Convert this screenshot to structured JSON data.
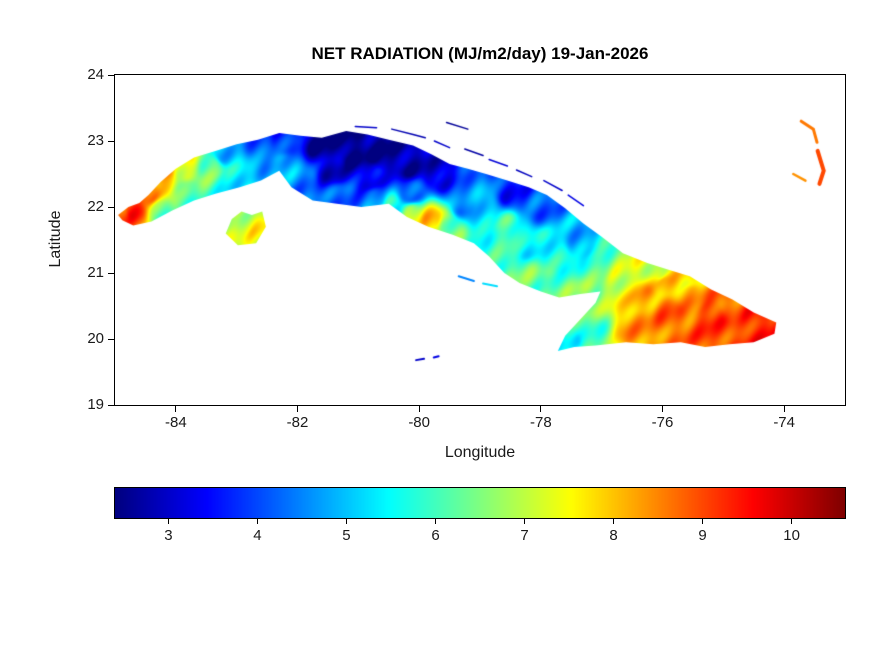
{
  "chart_data": {
    "type": "heatmap",
    "title": "NET RADIATION (MJ/m2/day) 19-Jan-2026",
    "xlabel": "Longitude",
    "ylabel": "Latitude",
    "units": "MJ/m2/day",
    "xlim": [
      -85,
      -73
    ],
    "ylim": [
      19,
      24
    ],
    "xticks": [
      -84,
      -82,
      -80,
      -78,
      -76,
      -74
    ],
    "yticks": [
      19,
      20,
      21,
      22,
      23,
      24
    ],
    "grid": false,
    "legend": "none",
    "colorbar": {
      "orientation": "horizontal",
      "colormap": "jet",
      "vmin": 2.4,
      "vmax": 10.6,
      "ticks": [
        3,
        4,
        5,
        6,
        7,
        8,
        9,
        10
      ]
    },
    "polygons": {
      "cuba_mainland": [
        [
          -84.95,
          21.88
        ],
        [
          -84.78,
          22.0
        ],
        [
          -84.6,
          22.06
        ],
        [
          -84.45,
          22.18
        ],
        [
          -84.25,
          22.38
        ],
        [
          -84.0,
          22.58
        ],
        [
          -83.7,
          22.75
        ],
        [
          -83.35,
          22.85
        ],
        [
          -83.0,
          22.95
        ],
        [
          -82.65,
          23.02
        ],
        [
          -82.3,
          23.12
        ],
        [
          -81.95,
          23.08
        ],
        [
          -81.6,
          23.05
        ],
        [
          -81.2,
          23.15
        ],
        [
          -80.85,
          23.1
        ],
        [
          -80.5,
          23.02
        ],
        [
          -80.1,
          22.93
        ],
        [
          -79.8,
          22.8
        ],
        [
          -79.5,
          22.65
        ],
        [
          -79.2,
          22.58
        ],
        [
          -78.9,
          22.5
        ],
        [
          -78.55,
          22.4
        ],
        [
          -78.2,
          22.3
        ],
        [
          -77.9,
          22.18
        ],
        [
          -77.6,
          21.98
        ],
        [
          -77.3,
          21.75
        ],
        [
          -77.0,
          21.55
        ],
        [
          -76.65,
          21.3
        ],
        [
          -76.25,
          21.15
        ],
        [
          -75.9,
          21.05
        ],
        [
          -75.55,
          20.95
        ],
        [
          -75.2,
          20.75
        ],
        [
          -74.85,
          20.6
        ],
        [
          -74.5,
          20.4
        ],
        [
          -74.13,
          20.25
        ],
        [
          -74.16,
          20.08
        ],
        [
          -74.5,
          19.95
        ],
        [
          -74.9,
          19.92
        ],
        [
          -75.3,
          19.88
        ],
        [
          -75.7,
          19.95
        ],
        [
          -76.15,
          19.92
        ],
        [
          -76.6,
          19.95
        ],
        [
          -77.1,
          19.9
        ],
        [
          -77.45,
          19.88
        ],
        [
          -77.72,
          19.82
        ],
        [
          -77.6,
          20.05
        ],
        [
          -77.35,
          20.3
        ],
        [
          -77.1,
          20.55
        ],
        [
          -77.02,
          20.72
        ],
        [
          -77.35,
          20.68
        ],
        [
          -77.7,
          20.63
        ],
        [
          -78.0,
          20.72
        ],
        [
          -78.35,
          20.85
        ],
        [
          -78.6,
          21.0
        ],
        [
          -78.85,
          21.25
        ],
        [
          -79.1,
          21.45
        ],
        [
          -79.45,
          21.58
        ],
        [
          -79.85,
          21.7
        ],
        [
          -80.2,
          21.85
        ],
        [
          -80.5,
          22.05
        ],
        [
          -80.95,
          22.0
        ],
        [
          -81.35,
          22.05
        ],
        [
          -81.75,
          22.1
        ],
        [
          -82.1,
          22.3
        ],
        [
          -82.3,
          22.55
        ],
        [
          -82.6,
          22.4
        ],
        [
          -82.95,
          22.3
        ],
        [
          -83.35,
          22.2
        ],
        [
          -83.7,
          22.1
        ],
        [
          -84.05,
          21.95
        ],
        [
          -84.4,
          21.78
        ],
        [
          -84.7,
          21.72
        ],
        [
          -84.88,
          21.8
        ]
      ],
      "isla_de_la_juventud": [
        [
          -83.18,
          21.6
        ],
        [
          -83.08,
          21.82
        ],
        [
          -82.92,
          21.93
        ],
        [
          -82.75,
          21.88
        ],
        [
          -82.58,
          21.93
        ],
        [
          -82.52,
          21.7
        ],
        [
          -82.68,
          21.45
        ],
        [
          -82.98,
          21.42
        ]
      ]
    },
    "streaks": [
      {
        "v": 2.8,
        "w": 1.5,
        "pts": [
          [
            -80.45,
            23.18
          ],
          [
            -80.1,
            23.1
          ],
          [
            -79.9,
            23.05
          ]
        ]
      },
      {
        "v": 3.0,
        "w": 1.5,
        "pts": [
          [
            -79.75,
            23.0
          ],
          [
            -79.5,
            22.9
          ]
        ]
      },
      {
        "v": 2.6,
        "w": 1.5,
        "pts": [
          [
            -79.55,
            23.28
          ],
          [
            -79.2,
            23.18
          ]
        ]
      },
      {
        "v": 2.7,
        "w": 1.5,
        "pts": [
          [
            -79.25,
            22.88
          ],
          [
            -78.95,
            22.78
          ]
        ]
      },
      {
        "v": 3.1,
        "w": 1.5,
        "pts": [
          [
            -78.85,
            22.72
          ],
          [
            -78.55,
            22.62
          ]
        ]
      },
      {
        "v": 2.9,
        "w": 1.5,
        "pts": [
          [
            -78.4,
            22.56
          ],
          [
            -78.15,
            22.46
          ]
        ]
      },
      {
        "v": 3.0,
        "w": 1.5,
        "pts": [
          [
            -77.95,
            22.4
          ],
          [
            -77.65,
            22.25
          ]
        ]
      },
      {
        "v": 3.2,
        "w": 1.5,
        "pts": [
          [
            -77.55,
            22.18
          ],
          [
            -77.3,
            22.02
          ]
        ]
      },
      {
        "v": 3.0,
        "w": 1.5,
        "pts": [
          [
            -81.05,
            23.22
          ],
          [
            -80.7,
            23.2
          ]
        ]
      },
      {
        "v": 4.5,
        "w": 2,
        "pts": [
          [
            -79.35,
            20.95
          ],
          [
            -79.1,
            20.88
          ]
        ]
      },
      {
        "v": 5.2,
        "w": 2,
        "pts": [
          [
            -78.95,
            20.84
          ],
          [
            -78.72,
            20.8
          ]
        ]
      },
      {
        "v": 3.0,
        "w": 2,
        "pts": [
          [
            -80.05,
            19.68
          ],
          [
            -79.92,
            19.7
          ]
        ]
      },
      {
        "v": 3.2,
        "w": 2,
        "pts": [
          [
            -79.76,
            19.72
          ],
          [
            -79.68,
            19.74
          ]
        ]
      },
      {
        "v": 8.6,
        "w": 3,
        "pts": [
          [
            -73.72,
            23.3
          ],
          [
            -73.52,
            23.18
          ],
          [
            -73.46,
            22.98
          ]
        ]
      },
      {
        "v": 9.0,
        "w": 4,
        "pts": [
          [
            -73.45,
            22.85
          ],
          [
            -73.35,
            22.55
          ],
          [
            -73.42,
            22.35
          ]
        ]
      },
      {
        "v": 8.4,
        "w": 2.5,
        "pts": [
          [
            -73.85,
            22.5
          ],
          [
            -73.65,
            22.4
          ]
        ]
      }
    ],
    "samples": [
      [
        -84.9,
        21.88,
        8.8
      ],
      [
        -84.7,
        21.95,
        9.2
      ],
      [
        -84.45,
        22.2,
        9.0
      ],
      [
        -84.2,
        22.45,
        8.4
      ],
      [
        -83.85,
        22.6,
        7.4
      ],
      [
        -84.25,
        21.95,
        6.2
      ],
      [
        -83.8,
        22.2,
        6.0
      ],
      [
        -83.4,
        22.6,
        6.4
      ],
      [
        -83.1,
        22.4,
        5.4
      ],
      [
        -83.2,
        22.8,
        5.0
      ],
      [
        -82.6,
        23.0,
        4.2
      ],
      [
        -82.25,
        23.0,
        3.8
      ],
      [
        -82.2,
        22.6,
        5.0
      ],
      [
        -81.6,
        22.95,
        2.5
      ],
      [
        -81.1,
        22.85,
        2.4
      ],
      [
        -80.6,
        22.8,
        2.5
      ],
      [
        -80.15,
        22.65,
        2.7
      ],
      [
        -79.7,
        22.5,
        3.0
      ],
      [
        -81.4,
        22.55,
        3.0
      ],
      [
        -80.8,
        22.45,
        3.2
      ],
      [
        -81.9,
        22.35,
        4.4
      ],
      [
        -81.3,
        22.15,
        4.2
      ],
      [
        -80.7,
        22.1,
        4.6
      ],
      [
        -80.15,
        22.2,
        4.0
      ],
      [
        -80.45,
        22.0,
        5.6
      ],
      [
        -80.1,
        21.9,
        7.2
      ],
      [
        -79.8,
        21.8,
        8.0
      ],
      [
        -79.5,
        21.7,
        6.4
      ],
      [
        -82.9,
        21.72,
        7.0
      ],
      [
        -82.65,
        21.55,
        7.6
      ],
      [
        -79.3,
        22.05,
        4.4
      ],
      [
        -78.9,
        21.9,
        5.2
      ],
      [
        -78.55,
        21.65,
        6.2
      ],
      [
        -78.2,
        21.45,
        5.4
      ],
      [
        -78.45,
        22.2,
        3.6
      ],
      [
        -77.95,
        22.0,
        4.2
      ],
      [
        -78.25,
        20.95,
        6.4
      ],
      [
        -77.9,
        20.8,
        6.2
      ],
      [
        -77.75,
        21.3,
        5.6
      ],
      [
        -77.35,
        21.45,
        4.8
      ],
      [
        -77.05,
        21.1,
        6.2
      ],
      [
        -77.5,
        19.95,
        5.6
      ],
      [
        -77.2,
        20.05,
        6.0
      ],
      [
        -77.35,
        20.6,
        6.6
      ],
      [
        -76.7,
        20.85,
        7.2
      ],
      [
        -76.3,
        20.6,
        8.2
      ],
      [
        -76.4,
        20.15,
        8.4
      ],
      [
        -75.95,
        20.85,
        8.0
      ],
      [
        -75.9,
        20.4,
        8.8
      ],
      [
        -75.5,
        20.65,
        8.3
      ],
      [
        -75.2,
        20.35,
        9.2
      ],
      [
        -74.85,
        20.5,
        8.7
      ],
      [
        -74.45,
        20.3,
        9.3
      ],
      [
        -74.2,
        20.18,
        9.4
      ],
      [
        -75.55,
        20.95,
        7.7
      ],
      [
        -76.05,
        21.0,
        7.1
      ],
      [
        -75.0,
        20.05,
        9.0
      ]
    ]
  }
}
